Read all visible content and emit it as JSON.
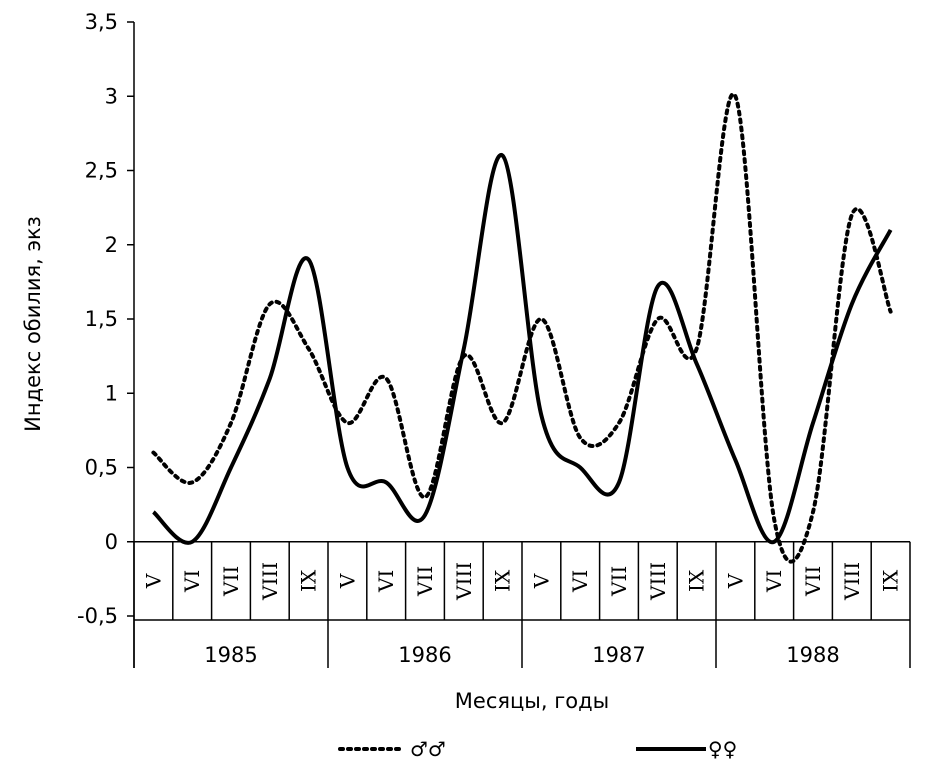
{
  "chart_data": {
    "type": "line",
    "title": "",
    "ylabel": "Индекс обилия,  экз",
    "xlabel": "Месяцы, годы",
    "ylim": [
      -0.5,
      3.5
    ],
    "yticks": [
      -0.5,
      0,
      0.5,
      1,
      1.5,
      2,
      2.5,
      3,
      3.5
    ],
    "ytick_labels": [
      "-0,5",
      "0",
      "0,5",
      "1",
      "1,5",
      "2",
      "2,5",
      "3",
      "3,5"
    ],
    "years": [
      "1985",
      "1986",
      "1987",
      "1988"
    ],
    "months": [
      "V",
      "VI",
      "VII",
      "VIII",
      "IX"
    ],
    "categories": [
      "V 1985",
      "VI 1985",
      "VII 1985",
      "VIII 1985",
      "IX 1985",
      "V 1986",
      "VI 1986",
      "VII 1986",
      "VIII 1986",
      "IX 1986",
      "V 1987",
      "VI 1987",
      "VII 1987",
      "VIII 1987",
      "IX 1987",
      "V 1988",
      "VI 1988",
      "VII 1988",
      "VIII 1988",
      "IX 1988"
    ],
    "grid": false,
    "legend_position": "bottom",
    "series": [
      {
        "name": "♂♂",
        "style": "dotted",
        "values": [
          0.6,
          0.4,
          0.8,
          1.6,
          1.3,
          0.8,
          1.1,
          0.3,
          1.25,
          0.8,
          1.5,
          0.7,
          0.8,
          1.5,
          1.3,
          3.0,
          0.15,
          0.2,
          2.2,
          1.55
        ]
      },
      {
        "name": "♀♀",
        "style": "solid",
        "values": [
          0.2,
          0.0,
          0.5,
          1.1,
          1.9,
          0.5,
          0.4,
          0.18,
          1.3,
          2.6,
          0.85,
          0.5,
          0.4,
          1.72,
          1.2,
          0.55,
          0.0,
          0.8,
          1.6,
          2.1
        ]
      }
    ]
  }
}
